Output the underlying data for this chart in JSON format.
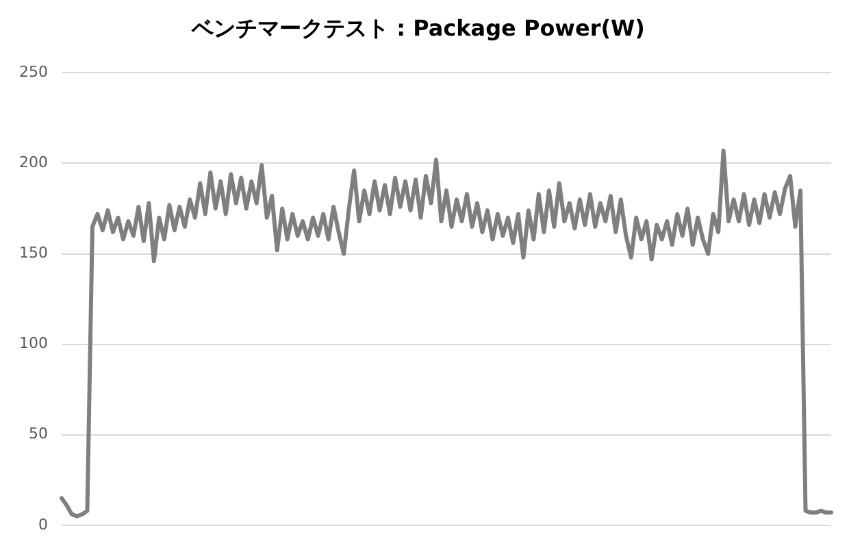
{
  "chart_data": {
    "type": "line",
    "title": "ベンチマークテスト : Package Power(W)",
    "categories": [
      null,
      null,
      null,
      null,
      null,
      null,
      null,
      null,
      null,
      null,
      null,
      null,
      null,
      null,
      null,
      null,
      null,
      null,
      null,
      null,
      null,
      null,
      null,
      null,
      null,
      null,
      null,
      null,
      null,
      null,
      null,
      null,
      null,
      null,
      null,
      null,
      null,
      null,
      null,
      null,
      null,
      null,
      null,
      null,
      null,
      null,
      null,
      null,
      null,
      null,
      null,
      null,
      null,
      null,
      null,
      null,
      null,
      null,
      null,
      null,
      null,
      null,
      null,
      null,
      null,
      null,
      null,
      null,
      null,
      null,
      null,
      null,
      null,
      null,
      null,
      null,
      null,
      null,
      null,
      null,
      null,
      null,
      null,
      null,
      null,
      null,
      null,
      null,
      null,
      null,
      null,
      null,
      null,
      null,
      null,
      null,
      null,
      null,
      null,
      null,
      null,
      null,
      null,
      null,
      null,
      null,
      null,
      null,
      null,
      null,
      null,
      null,
      null,
      null,
      null,
      null,
      null,
      null,
      null,
      null,
      null,
      null,
      null,
      null,
      null,
      null,
      null,
      null,
      null,
      null,
      null,
      null,
      null,
      null,
      null,
      null,
      null,
      null,
      null,
      null,
      null,
      null,
      null,
      null,
      null,
      null,
      null,
      null,
      null,
      null,
      null
    ],
    "series": [
      {
        "color": "#7f7f7f",
        "values": [
          15,
          11,
          6,
          5,
          6,
          8,
          165,
          172,
          163,
          174,
          162,
          170,
          158,
          168,
          160,
          176,
          157,
          178,
          146,
          170,
          158,
          177,
          163,
          176,
          165,
          180,
          170,
          189,
          172,
          195,
          175,
          190,
          172,
          194,
          178,
          192,
          175,
          190,
          178,
          199,
          170,
          182,
          152,
          175,
          158,
          172,
          160,
          168,
          158,
          170,
          160,
          172,
          158,
          176,
          162,
          150,
          175,
          196,
          168,
          185,
          172,
          190,
          174,
          188,
          172,
          192,
          176,
          190,
          174,
          191,
          170,
          193,
          178,
          202,
          168,
          185,
          165,
          180,
          168,
          183,
          165,
          178,
          162,
          174,
          158,
          172,
          160,
          170,
          156,
          172,
          148,
          174,
          158,
          183,
          162,
          185,
          165,
          189,
          168,
          178,
          164,
          180,
          166,
          183,
          165,
          178,
          168,
          182,
          162,
          180,
          160,
          148,
          170,
          158,
          168,
          147,
          166,
          158,
          168,
          155,
          172,
          160,
          175,
          155,
          170,
          158,
          150,
          172,
          162,
          207,
          168,
          180,
          168,
          183,
          166,
          180,
          167,
          183,
          170,
          184,
          172,
          186,
          193,
          165,
          185,
          8,
          7,
          7,
          8,
          7,
          7
        ]
      }
    ],
    "ylim": [
      0,
      250
    ],
    "yticks": [
      0,
      50,
      100,
      150,
      200,
      250
    ],
    "grid": "y",
    "tick_labels": "y",
    "marker": "none",
    "line_style": "solid"
  }
}
